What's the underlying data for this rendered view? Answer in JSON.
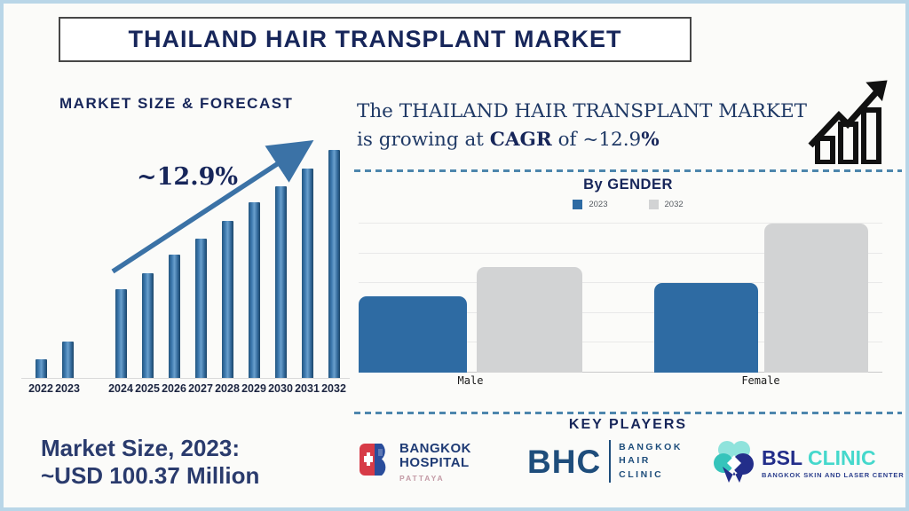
{
  "header": {
    "title": "THAILAND HAIR TRANSPLANT MARKET"
  },
  "left_panel": {
    "heading": "MARKET SIZE & FORECAST",
    "growth_label": "~12.9%",
    "market_size_line1": "Market Size, 2023:",
    "market_size_line2": "~USD 100.37 Million"
  },
  "right_panel": {
    "summary_part1": "The THAILAND HAIR TRANSPLANT MARKET is growing at ",
    "summary_bold1": "CAGR",
    "summary_part2": " of ~12.9",
    "summary_bold2": "%"
  },
  "gender_section": {
    "title": "By GENDER"
  },
  "key_players": {
    "heading": "KEY PLAYERS",
    "bangkok_hospital": {
      "line1": "BANGKOK",
      "line2": "HOSPITAL",
      "line3": "PATTAYA"
    },
    "bhc": {
      "abbr": "BHC",
      "line1": "BANGKOK",
      "line2": "HAIR",
      "line3": "CLINIC"
    },
    "bsl": {
      "abbr_navy": "BSL",
      "abbr_teal": "CLINIC",
      "subtext": "BANGKOK SKIN AND LASER CENTER"
    }
  },
  "colors": {
    "navy": "#17265a",
    "steel_blue": "#2e6ba3",
    "gray_bar": "#d2d3d4",
    "arrow": "#3b72a6",
    "dashed_line": "#4d86ad",
    "page_border": "#b9d6e8"
  },
  "chart_data": [
    {
      "type": "bar",
      "title": "MARKET SIZE & FORECAST",
      "categories": [
        "2022",
        "2023",
        "2024",
        "2025",
        "2026",
        "2027",
        "2028",
        "2029",
        "2030",
        "2031",
        "2032"
      ],
      "values": [
        8,
        16,
        39,
        46,
        54,
        61,
        69,
        77,
        84,
        92,
        100
      ],
      "values_unit": "relative bar height, % of 2032 bar (chart not labeled with numeric axis)",
      "annotation": "~12.9%",
      "context": "Market Size 2023 ~USD 100.37 Million, growing at CAGR ~12.9%",
      "bar_color": "#2e6ba3",
      "grid": "off",
      "xlabel": "",
      "ylabel": ""
    },
    {
      "type": "bar",
      "title": "By GENDER",
      "categories": [
        "Male",
        "Female"
      ],
      "series": [
        {
          "name": "2023",
          "color": "#2e6ba3",
          "values": [
            51,
            60
          ]
        },
        {
          "name": "2032",
          "color": "#d2d3d4",
          "values": [
            71,
            100
          ]
        }
      ],
      "values_unit": "relative bar height, % of tallest bar (Female 2032 = 100)",
      "legend_position": "top",
      "grid": "horizontal",
      "xlabel": "",
      "ylabel": ""
    }
  ]
}
